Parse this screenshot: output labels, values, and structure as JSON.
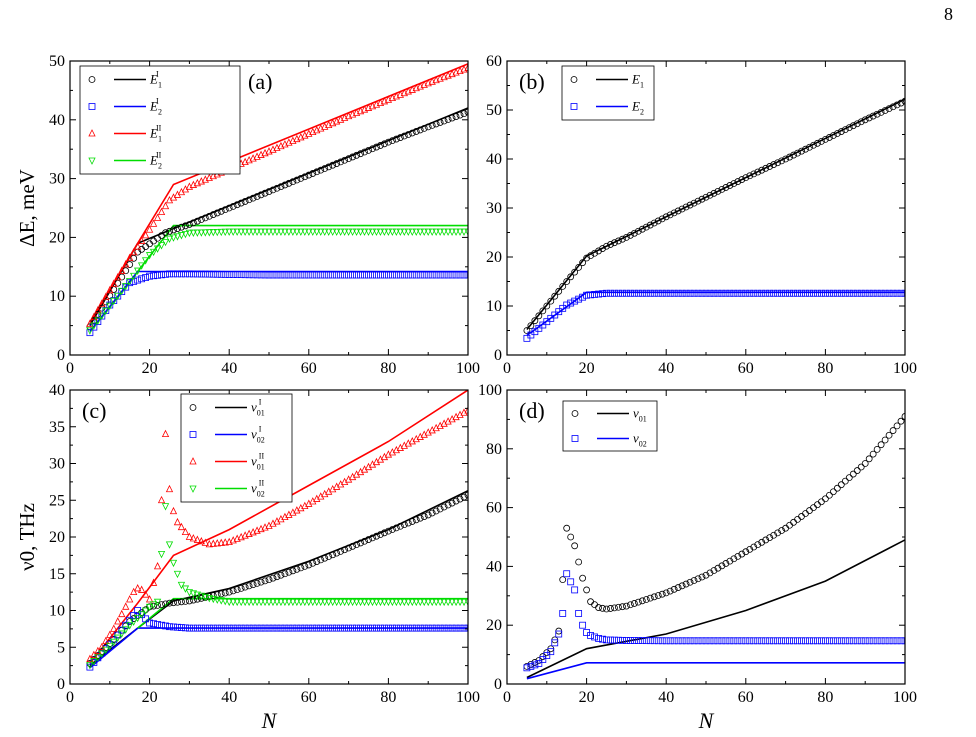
{
  "page_number": "8",
  "chart_data": [
    {
      "id": "a",
      "type": "line",
      "panel_label": "(a)",
      "ylabel": "ΔE, meV",
      "xlabel": "",
      "xlim": [
        0,
        100
      ],
      "ylim": [
        0,
        50
      ],
      "xticks": [
        0,
        20,
        40,
        60,
        80,
        100
      ],
      "yticks": [
        0,
        10,
        20,
        30,
        40,
        50
      ],
      "legend_position": "top-left",
      "legend": [
        {
          "base": "E",
          "sub": "1",
          "sup": "I",
          "color": "#000000",
          "marker": "circle"
        },
        {
          "base": "E",
          "sub": "2",
          "sup": "I",
          "color": "#0000ff",
          "marker": "square"
        },
        {
          "base": "E",
          "sub": "1",
          "sup": "II",
          "color": "#ff0000",
          "marker": "triangle-up"
        },
        {
          "base": "E",
          "sub": "2",
          "sup": "II",
          "color": "#00dd00",
          "marker": "triangle-down"
        }
      ],
      "series": [
        {
          "color": "#000000",
          "kind": "line",
          "x": [
            5,
            17,
            100
          ],
          "y": [
            5,
            19,
            42
          ]
        },
        {
          "color": "#0000ff",
          "kind": "line",
          "x": [
            5,
            17,
            100
          ],
          "y": [
            4,
            14.2,
            14.2
          ]
        },
        {
          "color": "#ff0000",
          "kind": "line",
          "x": [
            5,
            17,
            26,
            100
          ],
          "y": [
            5.5,
            19,
            29,
            49.5
          ]
        },
        {
          "color": "#00dd00",
          "kind": "line",
          "x": [
            17,
            26,
            100
          ],
          "y": [
            14.2,
            22,
            22
          ]
        },
        {
          "color": "#000000",
          "kind": "markers",
          "marker": "circle",
          "x": [
            5,
            17,
            24,
            30,
            40,
            50,
            60,
            70,
            80,
            90,
            100
          ],
          "y": [
            4.8,
            17.5,
            20.8,
            22.2,
            25,
            27.8,
            30.6,
            33.4,
            36.2,
            38.8,
            41.3
          ]
        },
        {
          "color": "#0000ff",
          "kind": "markers",
          "marker": "square",
          "x": [
            5,
            10,
            15,
            20,
            25,
            30,
            40,
            50,
            60,
            70,
            80,
            90,
            100
          ],
          "y": [
            3.8,
            8.5,
            12.3,
            13.4,
            13.8,
            13.8,
            13.7,
            13.6,
            13.6,
            13.6,
            13.6,
            13.6,
            13.6
          ]
        },
        {
          "color": "#ff0000",
          "kind": "markers",
          "marker": "triangle-up",
          "x": [
            5,
            10,
            15,
            20,
            25,
            30,
            40,
            50,
            60,
            70,
            80,
            90,
            100
          ],
          "y": [
            5.3,
            11,
            16.5,
            21.3,
            26.3,
            28.6,
            31.6,
            34.6,
            37.6,
            40.6,
            43.4,
            46.2,
            48.8
          ]
        },
        {
          "color": "#00dd00",
          "kind": "markers",
          "marker": "triangle-down",
          "x": [
            5,
            10,
            15,
            20,
            25,
            30,
            40,
            50,
            60,
            70,
            80,
            90,
            100
          ],
          "y": [
            4.2,
            8.4,
            12.6,
            17,
            19.8,
            20.8,
            21,
            21,
            21,
            21,
            21,
            21,
            21
          ]
        }
      ]
    },
    {
      "id": "b",
      "type": "line",
      "panel_label": "(b)",
      "ylabel": "",
      "xlabel": "",
      "xlim": [
        0,
        100
      ],
      "ylim": [
        0,
        60
      ],
      "xticks": [
        0,
        20,
        40,
        60,
        80,
        100
      ],
      "yticks": [
        0,
        10,
        20,
        30,
        40,
        50,
        60
      ],
      "legend_position": "top-left",
      "legend": [
        {
          "base": "E",
          "sub": "1",
          "sup": "",
          "color": "#000000",
          "marker": "circle"
        },
        {
          "base": "E",
          "sub": "2",
          "sup": "",
          "color": "#0000ff",
          "marker": "square"
        }
      ],
      "series": [
        {
          "color": "#000000",
          "kind": "line",
          "x": [
            5,
            20,
            100
          ],
          "y": [
            5.2,
            20.2,
            52.2
          ]
        },
        {
          "color": "#0000ff",
          "kind": "line",
          "x": [
            5,
            20,
            100
          ],
          "y": [
            4,
            12.8,
            12.8
          ]
        },
        {
          "color": "#000000",
          "kind": "markers",
          "marker": "circle",
          "x": [
            5,
            10,
            15,
            20,
            25,
            30,
            40,
            50,
            60,
            70,
            80,
            90,
            100
          ],
          "y": [
            5,
            10,
            15,
            19.8,
            22.2,
            24,
            28.2,
            32.2,
            36.2,
            40,
            44,
            48,
            51.8
          ]
        },
        {
          "color": "#0000ff",
          "kind": "markers",
          "marker": "square",
          "x": [
            5,
            10,
            15,
            20,
            25,
            30,
            40,
            50,
            60,
            70,
            80,
            90,
            100
          ],
          "y": [
            3.4,
            6.8,
            10.2,
            12.2,
            12.6,
            12.6,
            12.6,
            12.6,
            12.6,
            12.6,
            12.6,
            12.6,
            12.6
          ]
        }
      ]
    },
    {
      "id": "c",
      "type": "line",
      "panel_label": "(c)",
      "ylabel": "ν0, THz",
      "xlabel": "N",
      "xlim": [
        0,
        100
      ],
      "ylim": [
        0,
        40
      ],
      "xticks": [
        0,
        20,
        40,
        60,
        80,
        100
      ],
      "yticks": [
        0,
        5,
        10,
        15,
        20,
        25,
        30,
        35,
        40
      ],
      "legend_position": "top-center",
      "legend": [
        {
          "base": "ν",
          "sub": "01",
          "sup": "I",
          "color": "#000000",
          "marker": "circle"
        },
        {
          "base": "ν",
          "sub": "02",
          "sup": "I",
          "color": "#0000ff",
          "marker": "square"
        },
        {
          "base": "ν",
          "sub": "01",
          "sup": "II",
          "color": "#ff0000",
          "marker": "triangle-up"
        },
        {
          "base": "ν",
          "sub": "02",
          "sup": "II",
          "color": "#00dd00",
          "marker": "triangle-down"
        }
      ],
      "series": [
        {
          "color": "#000000",
          "kind": "line",
          "x": [
            5,
            17,
            26,
            40,
            60,
            80,
            100
          ],
          "y": [
            2.5,
            7.6,
            11.3,
            13,
            16.7,
            21,
            26.3
          ]
        },
        {
          "color": "#0000ff",
          "kind": "line",
          "x": [
            5,
            17,
            100
          ],
          "y": [
            2.2,
            7.6,
            7.6
          ]
        },
        {
          "color": "#ff0000",
          "kind": "line",
          "x": [
            5,
            17,
            26,
            40,
            60,
            80,
            100
          ],
          "y": [
            2.8,
            11,
            17.5,
            21,
            27,
            33,
            40
          ]
        },
        {
          "color": "#00dd00",
          "kind": "line",
          "x": [
            17,
            26,
            100
          ],
          "y": [
            7.6,
            11.6,
            11.6
          ]
        },
        {
          "color": "#000000",
          "kind": "markers",
          "marker": "circle",
          "x": [
            5,
            10,
            15,
            20,
            25,
            30,
            40,
            50,
            60,
            70,
            80,
            90,
            100
          ],
          "y": [
            2.8,
            5.5,
            8.5,
            10.5,
            11,
            11.3,
            12.5,
            14.2,
            16.2,
            18.5,
            20.8,
            23,
            25.7
          ]
        },
        {
          "color": "#0000ff",
          "kind": "markers",
          "marker": "square",
          "x": [
            5,
            8,
            11,
            14,
            17,
            20,
            25,
            30,
            40,
            50,
            60,
            70,
            80,
            90,
            100
          ],
          "y": [
            2.3,
            4.2,
            6,
            8,
            10,
            8.3,
            7.8,
            7.6,
            7.6,
            7.6,
            7.6,
            7.6,
            7.6,
            7.6,
            7.6
          ]
        },
        {
          "color": "#ff0000",
          "kind": "markers",
          "marker": "triangle-up",
          "x": [
            5,
            8,
            11,
            14,
            16,
            17,
            18,
            20,
            22,
            24,
            25,
            26,
            27,
            30,
            35,
            40,
            50,
            60,
            70,
            80,
            90,
            100
          ],
          "y": [
            3.4,
            5,
            7.5,
            10.5,
            12.5,
            13,
            12.8,
            11.5,
            16,
            34,
            26.5,
            23.5,
            22,
            20,
            19,
            19.3,
            21.5,
            24.5,
            27.8,
            31.2,
            34.2,
            37.2
          ]
        },
        {
          "color": "#00dd00",
          "kind": "markers",
          "marker": "triangle-down",
          "x": [
            5,
            10,
            15,
            20,
            22,
            24,
            25,
            26,
            28,
            30,
            35,
            40,
            50,
            60,
            70,
            80,
            90,
            100
          ],
          "y": [
            2.6,
            5.2,
            8,
            10.5,
            11.2,
            24.2,
            19,
            16.5,
            13.5,
            12.5,
            11.7,
            11.2,
            11.2,
            11.2,
            11.2,
            11.2,
            11.2,
            11.2
          ]
        }
      ]
    },
    {
      "id": "d",
      "type": "line",
      "panel_label": "(d)",
      "ylabel": "",
      "xlabel": "N",
      "xlim": [
        0,
        100
      ],
      "ylim": [
        0,
        100
      ],
      "xticks": [
        0,
        20,
        40,
        60,
        80,
        100
      ],
      "yticks": [
        0,
        20,
        40,
        60,
        80,
        100
      ],
      "legend_position": "top-left",
      "legend": [
        {
          "base": "ν",
          "sub": "01",
          "sup": "",
          "color": "#000000",
          "marker": "circle"
        },
        {
          "base": "ν",
          "sub": "02",
          "sup": "",
          "color": "#0000ff",
          "marker": "square"
        }
      ],
      "series": [
        {
          "color": "#000000",
          "kind": "line",
          "x": [
            5,
            20,
            40,
            60,
            80,
            100
          ],
          "y": [
            2.2,
            12,
            17,
            25,
            35,
            49
          ]
        },
        {
          "color": "#0000ff",
          "kind": "line",
          "x": [
            5,
            20,
            100
          ],
          "y": [
            1.8,
            7.2,
            7.2
          ]
        },
        {
          "color": "#000000",
          "kind": "markers",
          "marker": "circle",
          "x": [
            5,
            8,
            11,
            13,
            15,
            17,
            19,
            21,
            23,
            25,
            30,
            40,
            50,
            60,
            70,
            80,
            90,
            100
          ],
          "y": [
            6,
            8,
            12,
            18,
            53,
            47,
            36,
            28,
            26,
            25.5,
            26.5,
            31,
            37,
            45,
            53,
            63,
            75,
            91
          ]
        },
        {
          "color": "#0000ff",
          "kind": "markers",
          "marker": "square",
          "x": [
            5,
            8,
            11,
            13,
            14,
            15,
            17,
            18,
            19,
            20,
            21,
            23,
            25,
            30,
            40,
            50,
            60,
            70,
            80,
            90,
            100
          ],
          "y": [
            5.5,
            7,
            11,
            17,
            24,
            37.5,
            32,
            24,
            20,
            17.5,
            16.5,
            15.5,
            15,
            14.8,
            14.7,
            14.7,
            14.7,
            14.7,
            14.7,
            14.7,
            14.7
          ]
        }
      ]
    }
  ]
}
